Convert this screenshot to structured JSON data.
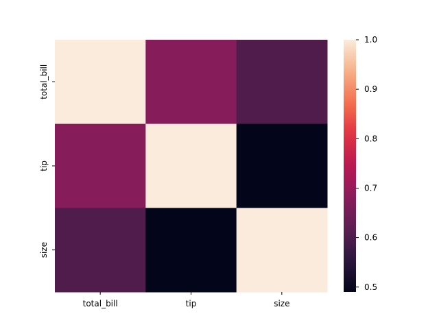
{
  "chart_data": {
    "type": "heatmap",
    "title": "",
    "xlabel": "",
    "ylabel": "",
    "x_categories": [
      "total_bill",
      "tip",
      "size"
    ],
    "y_categories": [
      "total_bill",
      "tip",
      "size"
    ],
    "values": [
      [
        1.0,
        0.68,
        0.6
      ],
      [
        0.68,
        1.0,
        0.49
      ],
      [
        0.6,
        0.49,
        1.0
      ]
    ],
    "colorbar": {
      "vmin": 0.49,
      "vmax": 1.0,
      "ticks": [
        0.5,
        0.6,
        0.7,
        0.8,
        0.9,
        1.0
      ],
      "tick_labels": [
        "0.5",
        "0.6",
        "0.7",
        "0.8",
        "0.9",
        "1.0"
      ],
      "colormap": "rocket"
    }
  }
}
